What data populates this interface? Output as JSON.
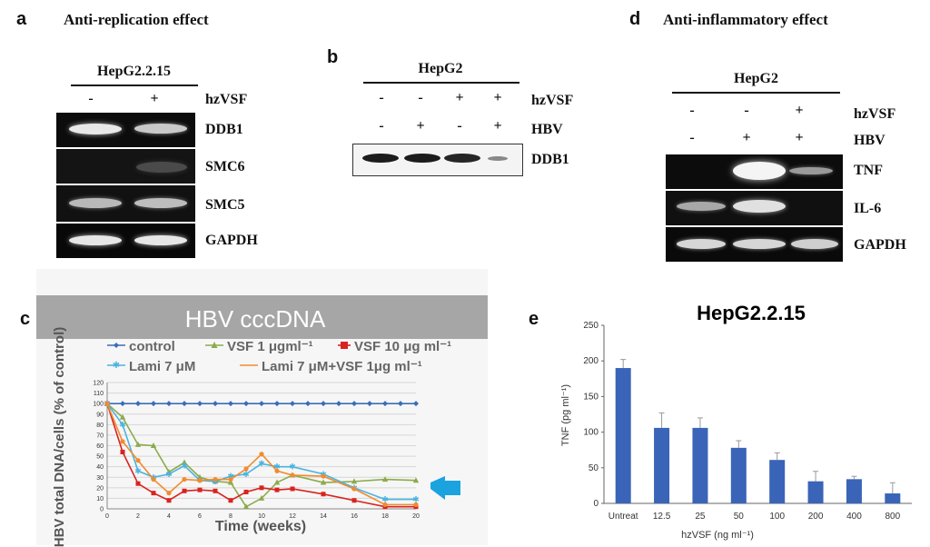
{
  "panel_a": {
    "letter": "a",
    "title": "Anti-replication effect",
    "cell_line": "HepG2.2.15",
    "row_label": "hzVSF",
    "signs": [
      "-",
      "+"
    ],
    "genes": [
      "DDB1",
      "SMC6",
      "SMC5",
      "GAPDH"
    ]
  },
  "panel_b": {
    "letter": "b",
    "cell_line": "HepG2",
    "rows": [
      {
        "label": "hzVSF",
        "signs": [
          "-",
          "-",
          "+",
          "+"
        ]
      },
      {
        "label": "HBV",
        "signs": [
          "-",
          "+",
          "-",
          "+"
        ]
      }
    ],
    "genes": [
      "DDB1"
    ]
  },
  "panel_d": {
    "letter": "d",
    "title": "Anti-inflammatory effect",
    "cell_line": "HepG2",
    "rows": [
      {
        "label": "hzVSF",
        "signs": [
          "-",
          "-",
          "+"
        ]
      },
      {
        "label": "HBV",
        "signs": [
          "-",
          "+",
          "+"
        ]
      }
    ],
    "genes": [
      "TNF",
      "IL-6",
      "GAPDH"
    ]
  },
  "panel_c": {
    "letter": "c"
  },
  "panel_e": {
    "letter": "e"
  },
  "colors": {
    "arrow": "#1ba3df",
    "bar": "#3a64b8",
    "banner": "#a6a6a6"
  },
  "chart_data": [
    {
      "type": "line",
      "title": "HBV cccDNA",
      "xlabel": "Time (weeks)",
      "ylabel": "HBV total DNA/cells (% of control)",
      "xlim": [
        0,
        20
      ],
      "ylim": [
        0,
        120
      ],
      "xticks": [
        0,
        2,
        4,
        6,
        8,
        10,
        12,
        14,
        16,
        18,
        20
      ],
      "yticks": [
        0,
        10,
        20,
        30,
        40,
        50,
        60,
        70,
        80,
        90,
        100,
        110,
        120
      ],
      "legend": [
        "control",
        "VSF 1 μgml⁻¹",
        "VSF 10 μg ml⁻¹",
        "Lami 7 μM",
        "Lami 7 μM+VSF 1μg ml⁻¹"
      ],
      "series": [
        {
          "name": "control",
          "color": "#3a6db8",
          "marker": "diamond",
          "x": [
            0,
            1,
            2,
            3,
            4,
            5,
            6,
            7,
            8,
            9,
            10,
            11,
            12,
            13,
            14,
            15,
            16,
            17,
            18,
            19,
            20
          ],
          "y": [
            100,
            100,
            100,
            100,
            100,
            100,
            100,
            100,
            100,
            100,
            100,
            100,
            100,
            100,
            100,
            100,
            100,
            100,
            100,
            100,
            100
          ]
        },
        {
          "name": "VSF 1 μgml⁻¹",
          "color": "#8cab4a",
          "marker": "triangle",
          "x": [
            0,
            1,
            2,
            3,
            4,
            5,
            6,
            7,
            8,
            9,
            10,
            11,
            12,
            14,
            16,
            18,
            20
          ],
          "y": [
            100,
            87,
            61,
            60,
            35,
            44,
            30,
            26,
            25,
            2,
            10,
            25,
            32,
            25,
            26,
            28,
            27
          ]
        },
        {
          "name": "VSF 10 μg ml⁻¹",
          "color": "#d9231f",
          "marker": "square",
          "x": [
            0,
            1,
            2,
            3,
            4,
            5,
            6,
            7,
            8,
            9,
            10,
            11,
            12,
            14,
            16,
            18,
            20
          ],
          "y": [
            100,
            54,
            24,
            15,
            8,
            17,
            18,
            17,
            8,
            16,
            20,
            18,
            19,
            14,
            8,
            2,
            2
          ]
        },
        {
          "name": "Lami 7 μM",
          "color": "#4ab3e0",
          "marker": "star",
          "x": [
            0,
            1,
            2,
            3,
            4,
            5,
            6,
            7,
            8,
            9,
            10,
            11,
            12,
            14,
            16,
            18,
            20
          ],
          "y": [
            100,
            80,
            36,
            30,
            33,
            41,
            27,
            26,
            31,
            33,
            43,
            40,
            40,
            33,
            20,
            9,
            9
          ]
        },
        {
          "name": "Lami 7 μM+VSF 1μg ml⁻¹",
          "color": "#f28b2e",
          "marker": "circle",
          "x": [
            0,
            1,
            2,
            3,
            4,
            5,
            6,
            7,
            8,
            9,
            10,
            11,
            12,
            14,
            16,
            18,
            20
          ],
          "y": [
            100,
            64,
            46,
            28,
            15,
            28,
            27,
            28,
            28,
            38,
            52,
            36,
            32,
            31,
            19,
            4,
            4
          ]
        }
      ]
    },
    {
      "type": "bar",
      "title": "HepG2.2.15",
      "xlabel": "hzVSF (ng ml⁻¹)",
      "ylabel": "TNF (pg ml⁻¹)",
      "ylim": [
        0,
        250
      ],
      "yticks": [
        0,
        50,
        100,
        150,
        200,
        250
      ],
      "categories": [
        "Untreat",
        "12.5",
        "25",
        "50",
        "100",
        "200",
        "400",
        "800"
      ],
      "values": [
        190,
        106,
        106,
        78,
        61,
        31,
        34,
        14
      ],
      "errors": [
        12,
        21,
        14,
        10,
        10,
        14,
        4,
        15
      ]
    }
  ]
}
